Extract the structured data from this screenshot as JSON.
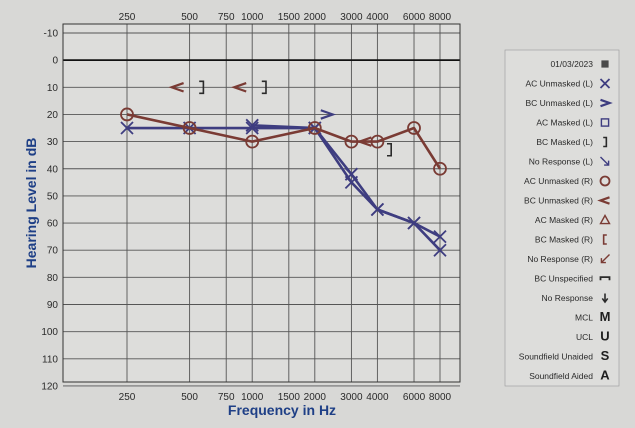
{
  "chart_data": {
    "type": "line",
    "title": "",
    "xlabel": "Frequency in Hz",
    "ylabel": "Hearing Level in dB",
    "x_scale": "log",
    "ylim": [
      -10,
      125
    ],
    "y_inverted": true,
    "grid": true,
    "legend_placement": "right",
    "x_ticks": [
      250,
      500,
      750,
      1000,
      1500,
      2000,
      3000,
      4000,
      6000,
      8000
    ],
    "x_tick_labels": [
      "250",
      "500",
      "750",
      "1000",
      "1500",
      "2000",
      "3000",
      "4000",
      "6000",
      "8000"
    ],
    "y_ticks": [
      -10,
      0,
      10,
      20,
      30,
      40,
      50,
      60,
      70,
      80,
      90,
      100,
      110,
      120
    ],
    "y_tick_labels": [
      "-10",
      "0",
      "10",
      "20",
      "30",
      "40",
      "50",
      "60",
      "70",
      "80",
      "90",
      "100",
      "110",
      "120"
    ],
    "series": [
      {
        "name": "AC Unmasked (L)",
        "color": "#3e3d80",
        "marker": "x",
        "connected": true,
        "points": [
          [
            250,
            25
          ],
          [
            500,
            25
          ],
          [
            1000,
            25
          ],
          [
            2000,
            25
          ],
          [
            3000,
            45
          ],
          [
            4000,
            55
          ],
          [
            6000,
            60
          ],
          [
            8000,
            70
          ]
        ]
      },
      {
        "name": "AC Unmasked (L)",
        "color": "#3e3d80",
        "marker": "x",
        "connected": true,
        "points": [
          [
            1000,
            24
          ],
          [
            2000,
            25
          ],
          [
            3000,
            42
          ],
          [
            4000,
            55
          ],
          [
            6000,
            60
          ],
          [
            8000,
            65
          ]
        ]
      },
      {
        "name": "AC Unmasked (R)",
        "color": "#7a3b34",
        "marker": "o",
        "connected": true,
        "points": [
          [
            250,
            20
          ],
          [
            500,
            25
          ],
          [
            1000,
            30
          ],
          [
            2000,
            25
          ],
          [
            3000,
            30
          ],
          [
            4000,
            30
          ],
          [
            6000,
            25
          ],
          [
            8000,
            40
          ]
        ]
      },
      {
        "name": "BC Unmasked (R)",
        "color": "#7a3b34",
        "marker": "<",
        "connected": false,
        "points": [
          [
            500,
            10
          ],
          [
            1000,
            10
          ],
          [
            4000,
            30
          ]
        ]
      },
      {
        "name": "BC Unmasked (L)",
        "color": "#3e3d80",
        "marker": ">",
        "connected": false,
        "points": [
          [
            2000,
            20
          ]
        ]
      },
      {
        "name": "BC Masked (L)",
        "color": "#2a2a2a",
        "marker": "]",
        "connected": false,
        "points": [
          [
            500,
            10
          ],
          [
            1000,
            10
          ],
          [
            4000,
            33
          ]
        ]
      }
    ],
    "legend": [
      {
        "label": "01/03/2023",
        "symbol": "square-filled",
        "color": "#4a4a4a"
      },
      {
        "label": "AC Unmasked (L)",
        "symbol": "x",
        "color": "#3e3d80"
      },
      {
        "label": "BC Unmasked (L)",
        "symbol": ">",
        "color": "#3e3d80"
      },
      {
        "label": "AC Masked (L)",
        "symbol": "square",
        "color": "#3e3d80"
      },
      {
        "label": "BC Masked (L)",
        "symbol": "]",
        "color": "#2a2a2a"
      },
      {
        "label": "No Response (L)",
        "symbol": "arrow-down-right",
        "color": "#3e3d80"
      },
      {
        "label": "AC Unmasked (R)",
        "symbol": "circle",
        "color": "#7a3b34"
      },
      {
        "label": "BC Unmasked (R)",
        "symbol": "<",
        "color": "#7a3b34"
      },
      {
        "label": "AC Masked (R)",
        "symbol": "triangle",
        "color": "#7a3b34"
      },
      {
        "label": "BC Masked (R)",
        "symbol": "[",
        "color": "#7a3b34"
      },
      {
        "label": "No Response (R)",
        "symbol": "arrow-down-left",
        "color": "#7a3b34"
      },
      {
        "label": "BC Unspecified",
        "symbol": "bracket-top",
        "color": "#2a2a2a"
      },
      {
        "label": "No Response",
        "symbol": "arrow-down",
        "color": "#2a2a2a"
      },
      {
        "label": "MCL",
        "symbol": "M",
        "color": "#1e1e1e"
      },
      {
        "label": "UCL",
        "symbol": "U",
        "color": "#1e1e1e"
      },
      {
        "label": "Soundfield Unaided",
        "symbol": "S",
        "color": "#1e1e1e"
      },
      {
        "label": "Soundfield Aided",
        "symbol": "A",
        "color": "#1e1e1e"
      }
    ]
  }
}
